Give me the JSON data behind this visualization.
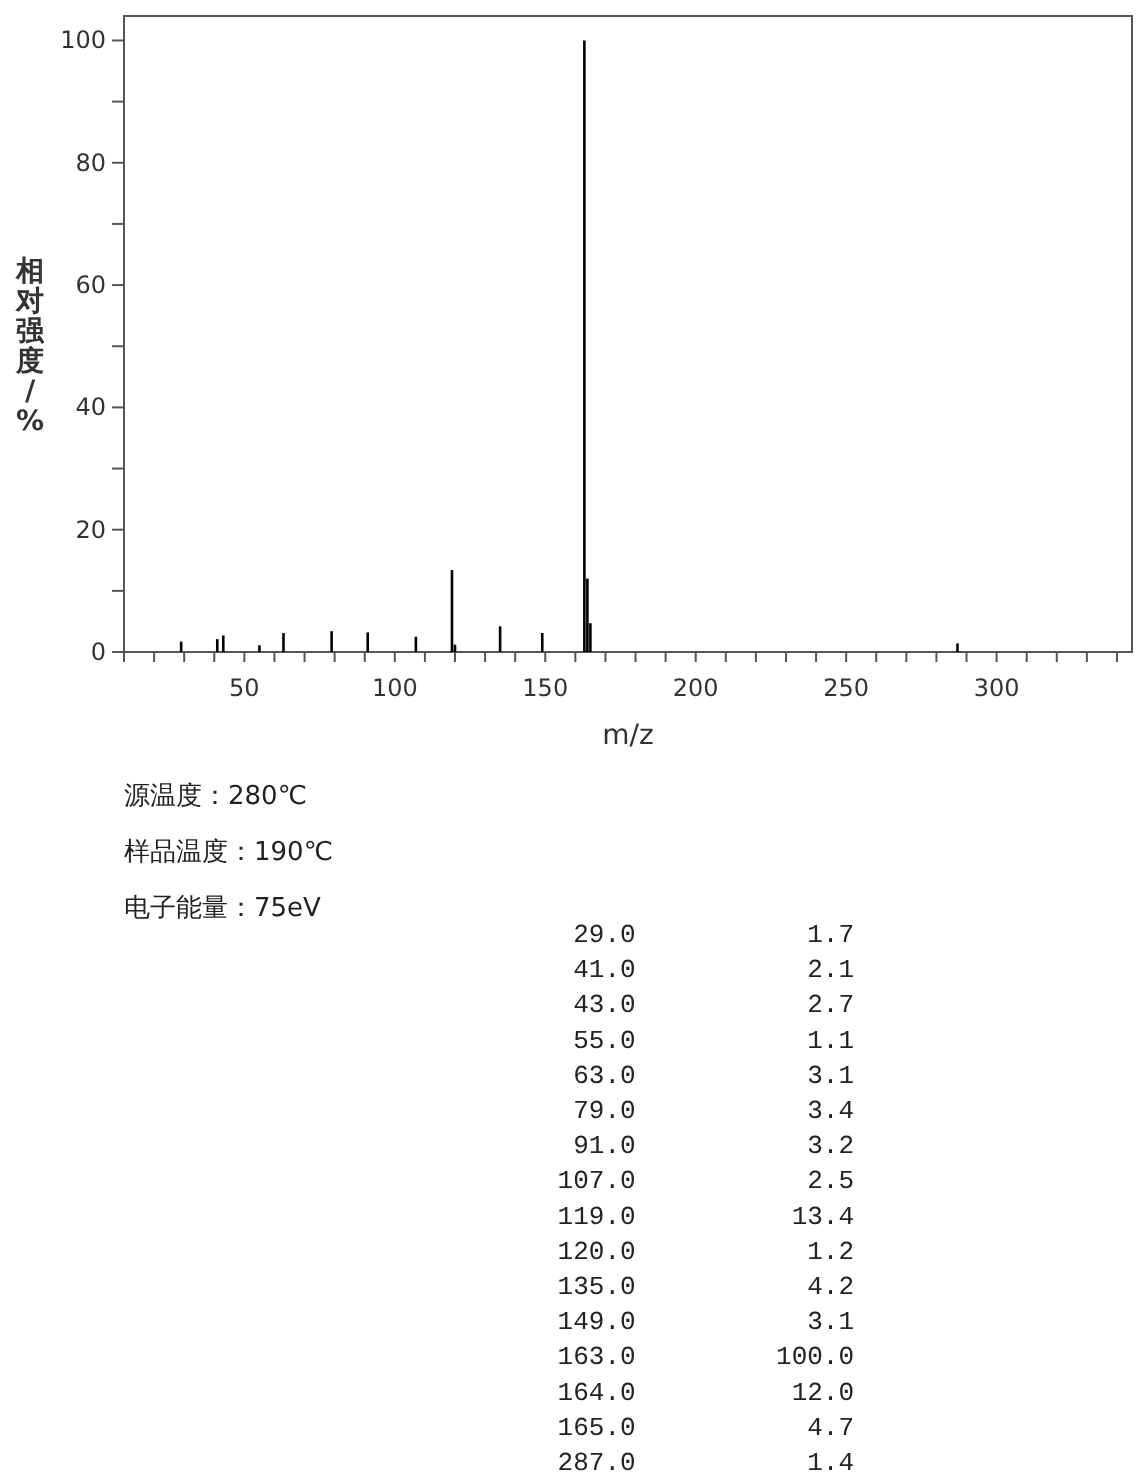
{
  "chart_data": {
    "type": "bar",
    "xlabel": "m/z",
    "ylabel": "相对强度/%",
    "x": [
      29,
      41,
      43,
      55,
      63,
      79,
      91,
      107,
      119,
      120,
      135,
      149,
      163,
      164,
      165,
      287
    ],
    "values": [
      1.7,
      2.1,
      2.7,
      1.1,
      3.1,
      3.4,
      3.2,
      2.5,
      13.4,
      1.2,
      4.2,
      3.1,
      100,
      12,
      4.7,
      1.4
    ],
    "color": "#000000",
    "grid": false,
    "xlim": [
      10,
      345
    ],
    "ylim": [
      0,
      104
    ],
    "xticks": [
      {
        "value": 10,
        "label": null
      },
      {
        "value": 20,
        "label": null
      },
      {
        "value": 30,
        "label": null
      },
      {
        "value": 40,
        "label": null
      },
      50,
      {
        "value": 60,
        "label": null
      },
      {
        "value": 70,
        "label": null
      },
      {
        "value": 80,
        "label": null
      },
      {
        "value": 90,
        "label": null
      },
      100,
      {
        "value": 110,
        "label": null
      },
      {
        "value": 120,
        "label": null
      },
      {
        "value": 130,
        "label": null
      },
      {
        "value": 140,
        "label": null
      },
      150,
      {
        "value": 160,
        "label": null
      },
      {
        "value": 170,
        "label": null
      },
      {
        "value": 180,
        "label": null
      },
      {
        "value": 190,
        "label": null
      },
      200,
      {
        "value": 210,
        "label": null
      },
      {
        "value": 220,
        "label": null
      },
      {
        "value": 230,
        "label": null
      },
      {
        "value": 240,
        "label": null
      },
      250,
      {
        "value": 260,
        "label": null
      },
      {
        "value": 270,
        "label": null
      },
      {
        "value": 280,
        "label": null
      },
      {
        "value": 290,
        "label": null
      },
      300,
      {
        "value": 310,
        "label": null
      },
      {
        "value": 320,
        "label": null
      },
      {
        "value": 330,
        "label": null
      },
      {
        "value": 340,
        "label": null
      }
    ],
    "yticks": [
      0,
      {
        "value": 10,
        "label": null
      },
      20,
      {
        "value": 30,
        "label": null
      },
      40,
      {
        "value": 50,
        "label": null
      },
      60,
      {
        "value": 70,
        "label": null
      },
      80,
      {
        "value": 90,
        "label": null
      },
      100
    ],
    "annotations": [
      "源温度：280℃",
      "样品温度：190℃",
      "电子能量：75eV",
      "  29.0           1.7",
      "  41.0           2.1",
      "  43.0           2.7",
      "  55.0           1.1",
      "  63.0           3.1",
      "  79.0           3.4",
      "  91.0           3.2",
      " 107.0           2.5",
      " 119.0          13.4",
      " 120.0           1.2",
      " 135.0           4.2",
      " 149.0           3.1",
      " 163.0         100.0",
      " 164.0          12.0",
      " 165.0           4.7",
      " 287.0           1.4"
    ]
  }
}
